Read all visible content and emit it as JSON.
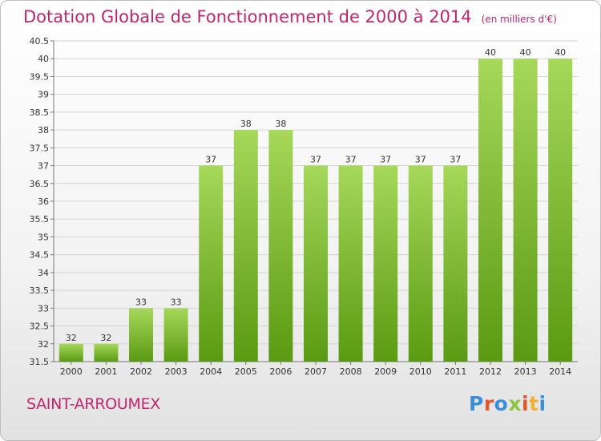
{
  "header": {
    "title": "Dotation Globale de Fonctionnement de 2000 à 2014",
    "subtitle": "(en milliers d'€)"
  },
  "footer": {
    "commune": "SAINT-ARROUMEX",
    "logo_text": "Proxiti",
    "logo_colors": [
      "#3a8fd8",
      "#e0572a",
      "#3a8fd8",
      "#8cc63f",
      "#e0572a",
      "#f2b134",
      "#3a8fd8"
    ]
  },
  "colors": {
    "title": "#c0256e",
    "bar_top": "#a6d85a",
    "bar_bottom": "#5a9a12",
    "grid": "#d4d4d4"
  },
  "chart_data": {
    "type": "bar",
    "title": "Dotation Globale de Fonctionnement de 2000 à 2014",
    "subtitle": "(en milliers d'€)",
    "categories": [
      "2000",
      "2001",
      "2002",
      "2003",
      "2004",
      "2005",
      "2006",
      "2007",
      "2008",
      "2009",
      "2010",
      "2011",
      "2012",
      "2013",
      "2014"
    ],
    "values": [
      32,
      32,
      33,
      33,
      37,
      38,
      38,
      37,
      37,
      37,
      37,
      37,
      40,
      40,
      40
    ],
    "ylim": [
      31.5,
      40.5
    ],
    "yticks": [
      "31.5",
      "32",
      "32.5",
      "33",
      "33.5",
      "34",
      "34.5",
      "35",
      "35.5",
      "36",
      "36.5",
      "37",
      "37.5",
      "38",
      "38.5",
      "39",
      "39.5",
      "40",
      "40.5"
    ],
    "grid": true,
    "xlabel": "",
    "ylabel": ""
  }
}
